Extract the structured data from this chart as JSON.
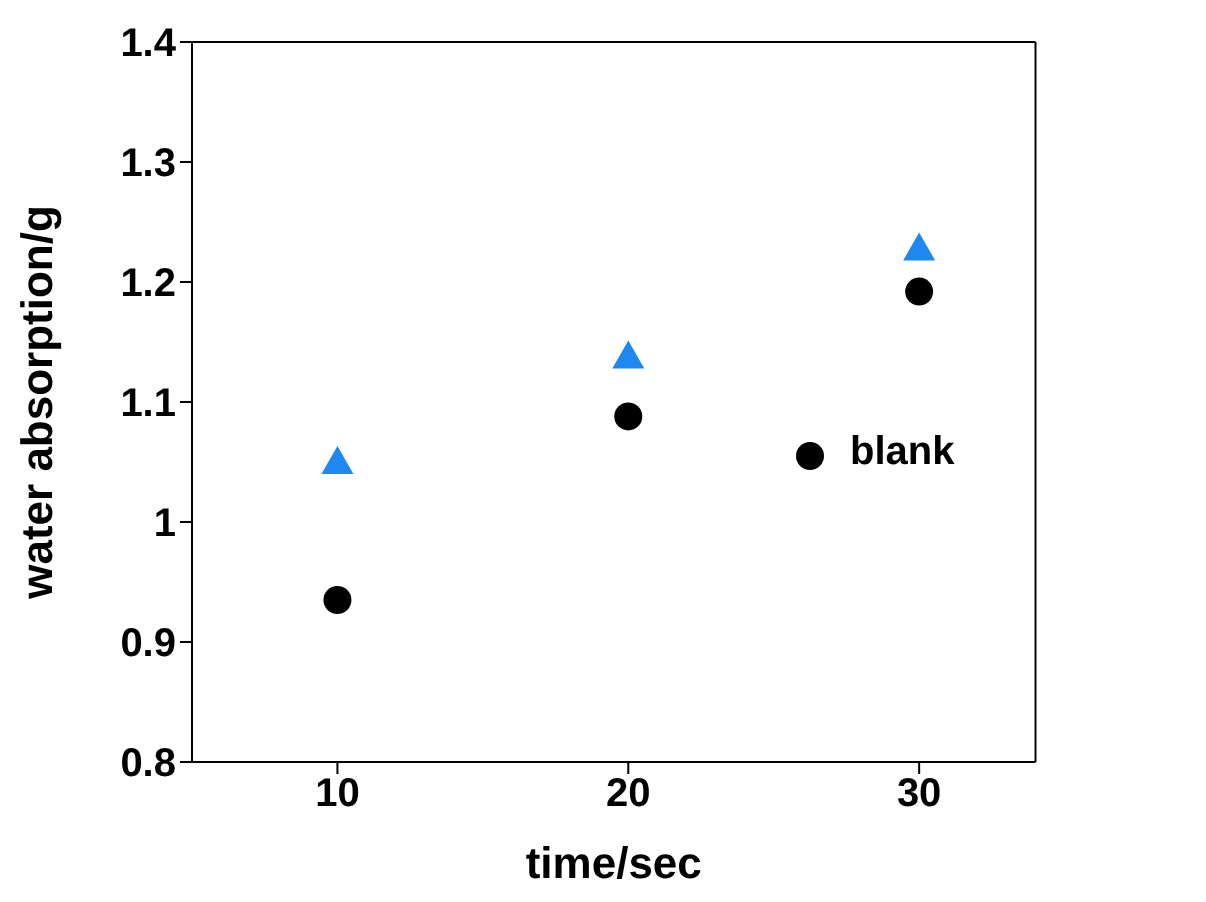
{
  "chart_data": {
    "type": "scatter",
    "xlabel": "time/sec",
    "ylabel": "water absorption/g",
    "x": [
      10,
      20,
      30
    ],
    "series": [
      {
        "name": "blank",
        "color": "#000000",
        "marker": "circle",
        "values": [
          0.935,
          1.088,
          1.192
        ]
      },
      {
        "color": "#1e88f0",
        "marker": "triangle",
        "values": [
          1.05,
          1.138,
          1.228
        ]
      }
    ],
    "xlim": [
      5,
      34
    ],
    "xticks": [
      10,
      20,
      30
    ],
    "ylim": [
      0.8,
      1.4
    ],
    "yticks": [
      0.8,
      0.9,
      1,
      1.1,
      1.2,
      1.3,
      1.4
    ],
    "grid": false,
    "legend": "right"
  }
}
